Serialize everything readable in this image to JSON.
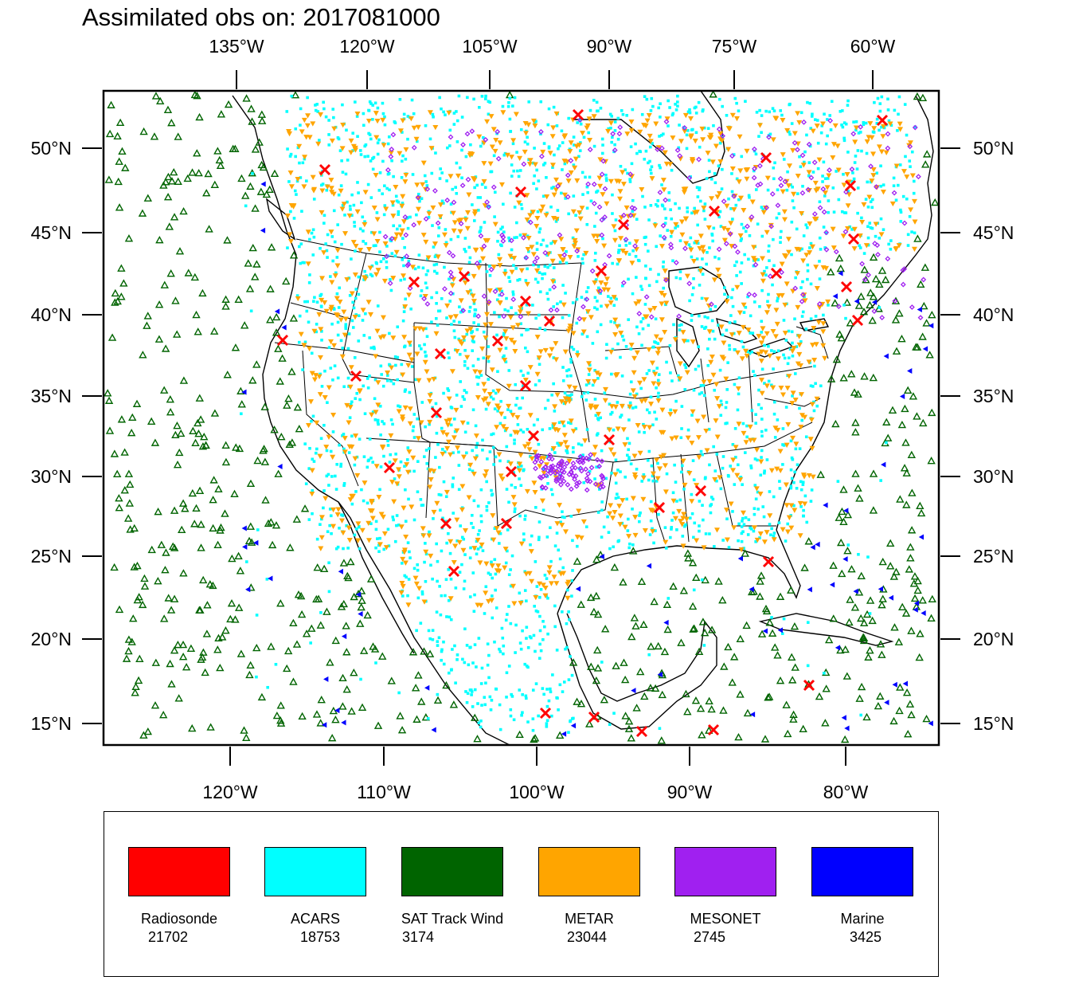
{
  "title": "Assimilated obs on: 2017081000",
  "map": {
    "top_lon_ticks": [
      "135°W",
      "120°W",
      "105°W",
      "90°W",
      "75°W",
      "60°W"
    ],
    "bottom_lon_ticks": [
      "120°W",
      "110°W",
      "100°W",
      "90°W",
      "80°W"
    ],
    "lat_ticks": [
      "50°N",
      "45°N",
      "40°N",
      "35°N",
      "30°N",
      "25°N",
      "20°N",
      "15°N"
    ]
  },
  "legend": [
    {
      "name": "Radiosonde",
      "count": "21702",
      "color": "#ff0000",
      "marker": "x"
    },
    {
      "name": "ACARS",
      "count": "18753",
      "color": "#00ffff",
      "marker": "dot"
    },
    {
      "name": "SAT Track Wind",
      "count": "3174",
      "color": "#006400",
      "marker": "triangle-up"
    },
    {
      "name": "METAR",
      "count": "23044",
      "color": "#ffa500",
      "marker": "triangle-down"
    },
    {
      "name": "MESONET",
      "count": "2745",
      "color": "#a020f0",
      "marker": "diamond"
    },
    {
      "name": "Marine",
      "count": "3425",
      "color": "#0000ff",
      "marker": "triangle-left"
    }
  ]
}
